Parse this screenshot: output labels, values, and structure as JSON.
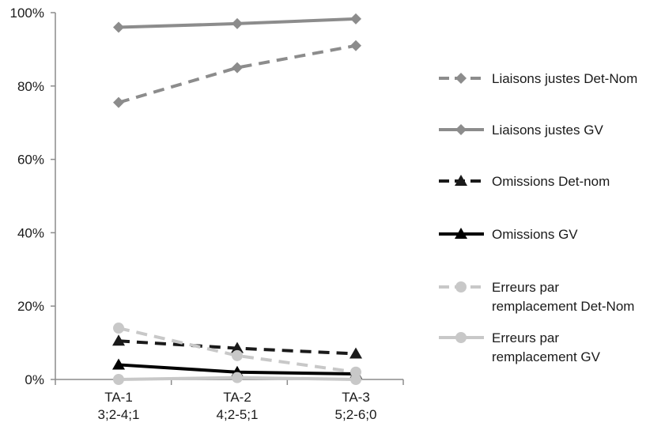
{
  "chart_data": {
    "type": "line",
    "title": "",
    "xlabel": "",
    "ylabel": "",
    "categories": [
      [
        "TA-1",
        "3;2-4;1"
      ],
      [
        "TA-2",
        "4;2-5;1"
      ],
      [
        "TA-3",
        "5;2-6;0"
      ]
    ],
    "ylim": [
      0,
      100
    ],
    "y_ticks": [
      "0%",
      "20%",
      "40%",
      "60%",
      "80%",
      "100%"
    ],
    "y_tick_values": [
      0,
      20,
      40,
      60,
      80,
      100
    ],
    "grid": false,
    "legend_position": "right",
    "series": [
      {
        "name": "Liaisons justes Det-Nom",
        "label_lines": [
          "Liaisons justes Det-Nom"
        ],
        "values": [
          75.5,
          85,
          91
        ],
        "color": "#8c8c8c",
        "dashed": true,
        "marker": "diamond"
      },
      {
        "name": "Liaisons justes GV",
        "label_lines": [
          "Liaisons justes GV"
        ],
        "values": [
          96,
          97,
          98.3
        ],
        "color": "#8c8c8c",
        "dashed": false,
        "marker": "diamond"
      },
      {
        "name": "Omissions Det-nom",
        "label_lines": [
          "Omissions Det-nom"
        ],
        "values": [
          10.5,
          8.5,
          7
        ],
        "color": "#1a1a1a",
        "dashed": true,
        "marker": "triangle"
      },
      {
        "name": "Omissions GV",
        "label_lines": [
          "Omissions GV"
        ],
        "values": [
          4,
          2,
          1.5
        ],
        "color": "#000000",
        "dashed": false,
        "marker": "triangle"
      },
      {
        "name": "Erreurs par remplacement Det-Nom",
        "label_lines": [
          "Erreurs par",
          "remplacement Det-Nom"
        ],
        "values": [
          14,
          6.5,
          2
        ],
        "color": "#c8c8c8",
        "dashed": true,
        "marker": "circle"
      },
      {
        "name": "Erreurs par remplacement GV",
        "label_lines": [
          "Erreurs par",
          "remplacement GV"
        ],
        "values": [
          0,
          0.5,
          0
        ],
        "color": "#c8c8c8",
        "dashed": false,
        "marker": "circle"
      }
    ]
  }
}
